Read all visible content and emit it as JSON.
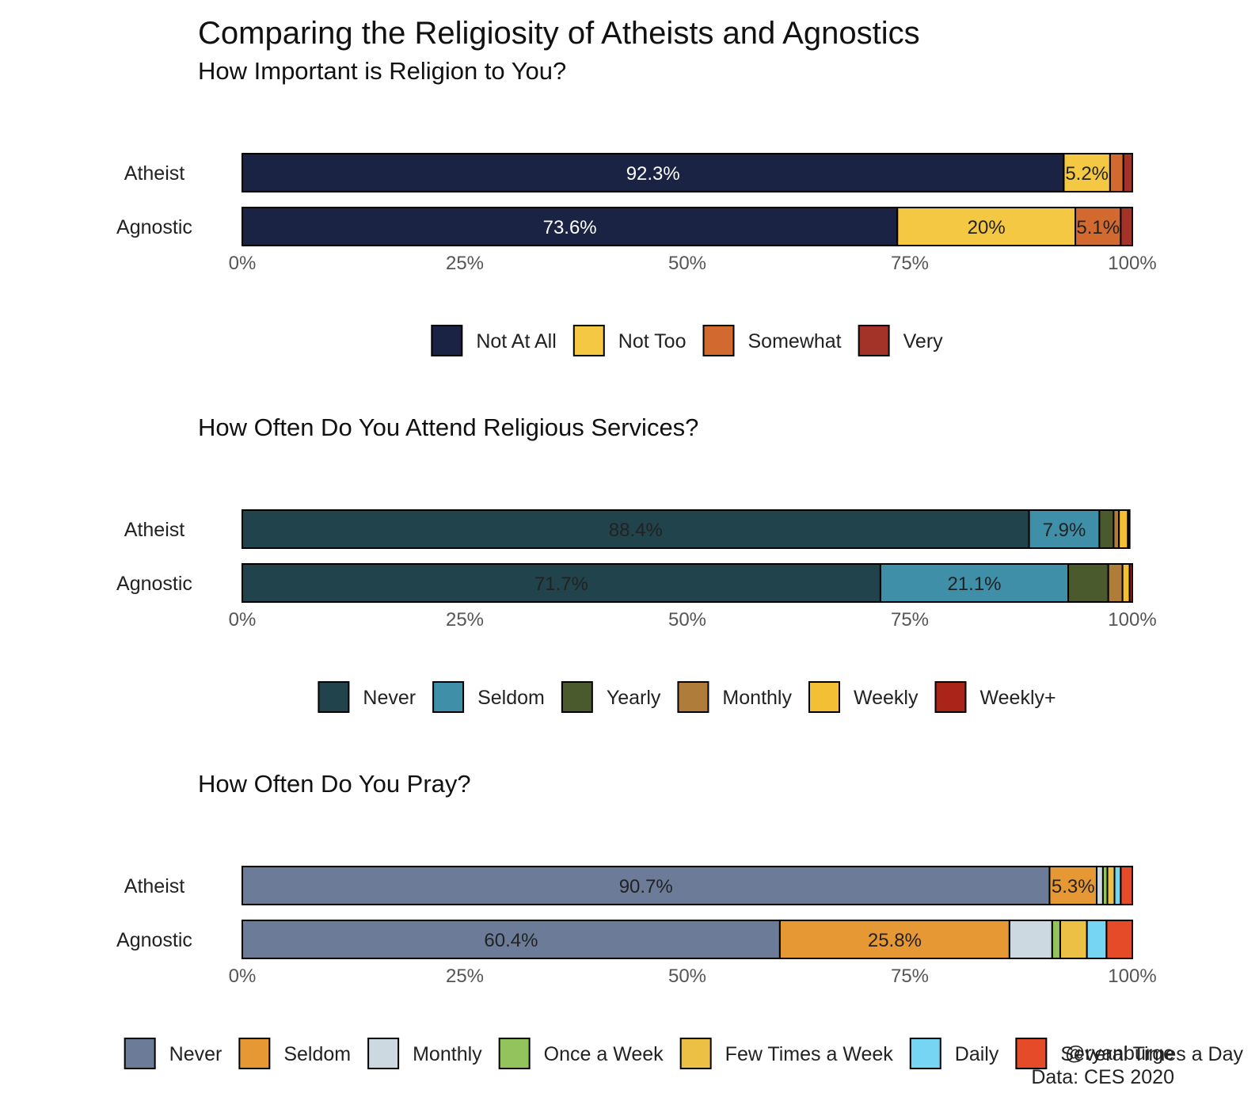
{
  "title": "Comparing the Religiosity of Atheists and Agnostics",
  "caption": [
    "@ryanburge",
    "Data: CES 2020"
  ],
  "chart_data": [
    {
      "type": "bar",
      "orientation": "horizontal",
      "stacked": true,
      "title": "How Important is Religion to You?",
      "categories": [
        "Atheist",
        "Agnostic"
      ],
      "xlim": [
        0,
        100
      ],
      "ticks": [
        "0%",
        "25%",
        "50%",
        "75%",
        "100%"
      ],
      "legend_position": "bottom",
      "series": [
        {
          "name": "Not At All",
          "color": "#1b2344",
          "label_color": "#ffffff",
          "values": [
            92.3,
            73.6
          ],
          "labels": [
            "92.3%",
            "73.6%"
          ]
        },
        {
          "name": "Not Too",
          "color": "#f4c842",
          "label_color": "#222222",
          "values": [
            5.2,
            20.0
          ],
          "labels": [
            "5.2%",
            "20%"
          ]
        },
        {
          "name": "Somewhat",
          "color": "#d2692e",
          "label_color": "#222222",
          "values": [
            1.5,
            5.1
          ],
          "labels": [
            "",
            "5.1%"
          ]
        },
        {
          "name": "Very",
          "color": "#a33328",
          "label_color": "#222222",
          "values": [
            1.0,
            1.3
          ],
          "labels": [
            "",
            ""
          ]
        }
      ]
    },
    {
      "type": "bar",
      "orientation": "horizontal",
      "stacked": true,
      "title": "How Often Do You Attend Religious Services?",
      "categories": [
        "Atheist",
        "Agnostic"
      ],
      "xlim": [
        0,
        100
      ],
      "ticks": [
        "0%",
        "25%",
        "50%",
        "75%",
        "100%"
      ],
      "legend_position": "bottom",
      "series": [
        {
          "name": "Never",
          "color": "#21434b",
          "label_color": "#222222",
          "values": [
            88.4,
            71.7
          ],
          "labels": [
            "88.4%",
            "71.7%"
          ]
        },
        {
          "name": "Seldom",
          "color": "#3e8fa7",
          "label_color": "#222222",
          "values": [
            7.9,
            21.1
          ],
          "labels": [
            "7.9%",
            "21.1%"
          ]
        },
        {
          "name": "Yearly",
          "color": "#4b5a2c",
          "label_color": "#222222",
          "values": [
            1.6,
            4.5
          ],
          "labels": [
            "",
            ""
          ]
        },
        {
          "name": "Monthly",
          "color": "#b07c3a",
          "label_color": "#222222",
          "values": [
            0.6,
            1.6
          ],
          "labels": [
            "",
            ""
          ]
        },
        {
          "name": "Weekly",
          "color": "#f3bf34",
          "label_color": "#222222",
          "values": [
            1.0,
            0.8
          ],
          "labels": [
            "",
            ""
          ]
        },
        {
          "name": "Weekly+",
          "color": "#ab2419",
          "label_color": "#222222",
          "values": [
            0.2,
            0.3
          ],
          "labels": [
            "",
            ""
          ]
        }
      ]
    },
    {
      "type": "bar",
      "orientation": "horizontal",
      "stacked": true,
      "title": "How Often Do You Pray?",
      "categories": [
        "Atheist",
        "Agnostic"
      ],
      "xlim": [
        0,
        100
      ],
      "ticks": [
        "0%",
        "25%",
        "50%",
        "75%",
        "100%"
      ],
      "legend_position": "bottom",
      "series": [
        {
          "name": "Never",
          "color": "#6b7b98",
          "label_color": "#222222",
          "values": [
            90.7,
            60.4
          ],
          "labels": [
            "90.7%",
            "60.4%"
          ]
        },
        {
          "name": "Seldom",
          "color": "#e69835",
          "label_color": "#222222",
          "values": [
            5.3,
            25.8
          ],
          "labels": [
            "5.3%",
            "25.8%"
          ]
        },
        {
          "name": "Monthly",
          "color": "#ccd9e0",
          "label_color": "#222222",
          "values": [
            0.7,
            4.8
          ],
          "labels": [
            "",
            ""
          ]
        },
        {
          "name": "Once a Week",
          "color": "#92c35c",
          "label_color": "#222222",
          "values": [
            0.5,
            0.9
          ],
          "labels": [
            "",
            ""
          ]
        },
        {
          "name": "Few Times a Week",
          "color": "#ecc044",
          "label_color": "#222222",
          "values": [
            0.8,
            3.0
          ],
          "labels": [
            "",
            ""
          ]
        },
        {
          "name": "Daily",
          "color": "#76d5f2",
          "label_color": "#222222",
          "values": [
            0.7,
            2.2
          ],
          "labels": [
            "",
            ""
          ]
        },
        {
          "name": "Several Times a Day",
          "color": "#e54b28",
          "label_color": "#222222",
          "values": [
            1.3,
            2.9
          ],
          "labels": [
            "",
            ""
          ]
        }
      ]
    }
  ]
}
